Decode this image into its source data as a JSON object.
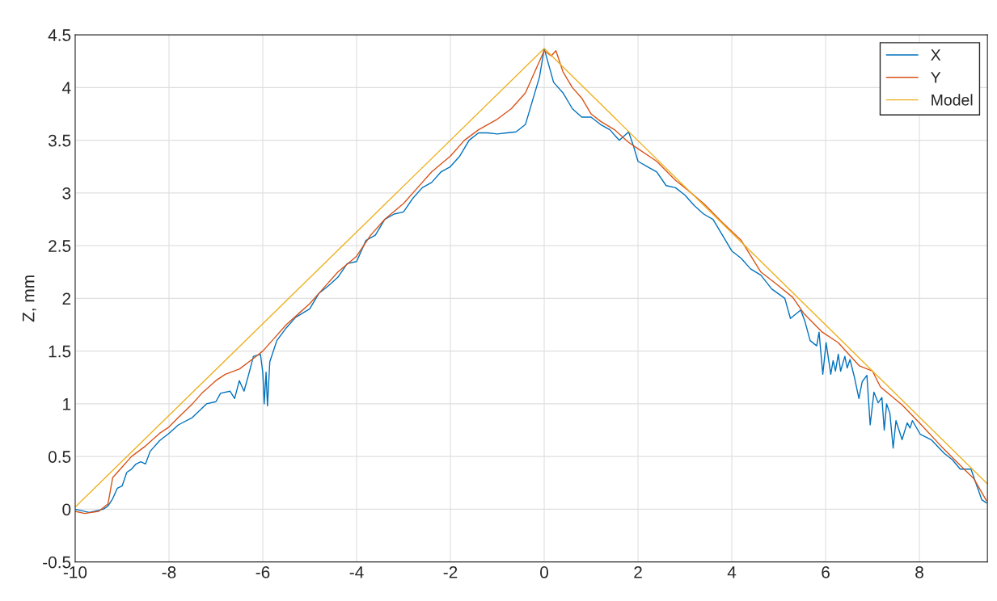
{
  "chart_data": {
    "type": "line",
    "ylabel": "Z, mm",
    "xlim": [
      -10,
      9.45
    ],
    "xticks": [
      -10,
      -8,
      -6,
      -4,
      -2,
      0,
      2,
      4,
      6,
      8
    ],
    "ylim": [
      -0.5,
      4.5
    ],
    "yticks": [
      -0.5,
      0,
      0.5,
      1,
      1.5,
      2,
      2.5,
      3,
      3.5,
      4,
      4.5
    ],
    "grid": true,
    "legend": "top right",
    "series": [
      {
        "name": "X",
        "color": "#0072bd",
        "x": [
          -10,
          -9.7,
          -9.4,
          -9.3,
          -9.2,
          -9.1,
          -9.0,
          -8.9,
          -8.8,
          -8.7,
          -8.6,
          -8.5,
          -8.4,
          -8.2,
          -8.0,
          -7.8,
          -7.5,
          -7.2,
          -7.0,
          -6.9,
          -6.7,
          -6.6,
          -6.5,
          -6.4,
          -6.3,
          -6.2,
          -6.05,
          -6.0,
          -5.97,
          -5.93,
          -5.9,
          -5.85,
          -5.7,
          -5.5,
          -5.3,
          -5.0,
          -4.8,
          -4.6,
          -4.4,
          -4.2,
          -4.0,
          -3.8,
          -3.6,
          -3.4,
          -3.2,
          -3.0,
          -2.8,
          -2.6,
          -2.4,
          -2.2,
          -2.0,
          -1.8,
          -1.6,
          -1.4,
          -1.2,
          -1.0,
          -0.8,
          -0.6,
          -0.4,
          -0.2,
          -0.1,
          0.0,
          0.2,
          0.4,
          0.6,
          0.8,
          1.0,
          1.2,
          1.4,
          1.6,
          1.8,
          1.9,
          2.0,
          2.2,
          2.4,
          2.6,
          2.8,
          3.0,
          3.2,
          3.4,
          3.6,
          3.8,
          4.0,
          4.2,
          4.4,
          4.62,
          4.85,
          5.13,
          5.25,
          5.47,
          5.56,
          5.67,
          5.81,
          5.86,
          5.94,
          6.01,
          6.11,
          6.16,
          6.21,
          6.27,
          6.32,
          6.41,
          6.46,
          6.52,
          6.61,
          6.71,
          6.78,
          6.88,
          6.95,
          7.03,
          7.12,
          7.2,
          7.25,
          7.3,
          7.37,
          7.44,
          7.5,
          7.63,
          7.74,
          7.8,
          7.85,
          8.02,
          8.25,
          8.53,
          8.7,
          8.87,
          9.1,
          9.21,
          9.33,
          9.43
        ],
        "values": [
          0.0,
          -0.03,
          0.0,
          0.03,
          0.1,
          0.2,
          0.22,
          0.35,
          0.38,
          0.43,
          0.45,
          0.43,
          0.55,
          0.65,
          0.72,
          0.8,
          0.87,
          1.0,
          1.02,
          1.1,
          1.12,
          1.05,
          1.22,
          1.12,
          1.28,
          1.45,
          1.47,
          1.3,
          1.0,
          1.3,
          0.98,
          1.4,
          1.6,
          1.72,
          1.82,
          1.9,
          2.05,
          2.12,
          2.2,
          2.33,
          2.35,
          2.55,
          2.6,
          2.75,
          2.8,
          2.82,
          2.95,
          3.05,
          3.1,
          3.2,
          3.25,
          3.35,
          3.5,
          3.57,
          3.57,
          3.56,
          3.57,
          3.58,
          3.65,
          3.95,
          4.1,
          4.37,
          4.05,
          3.95,
          3.8,
          3.72,
          3.72,
          3.65,
          3.6,
          3.5,
          3.58,
          3.45,
          3.3,
          3.25,
          3.2,
          3.07,
          3.05,
          2.98,
          2.88,
          2.8,
          2.75,
          2.6,
          2.45,
          2.38,
          2.28,
          2.22,
          2.09,
          2.0,
          1.81,
          1.89,
          1.78,
          1.6,
          1.55,
          1.68,
          1.28,
          1.58,
          1.28,
          1.41,
          1.31,
          1.47,
          1.31,
          1.45,
          1.34,
          1.42,
          1.26,
          1.05,
          1.21,
          1.27,
          0.8,
          1.11,
          1.01,
          1.06,
          0.75,
          1.0,
          0.91,
          0.58,
          0.84,
          0.66,
          0.82,
          0.77,
          0.84,
          0.71,
          0.66,
          0.53,
          0.47,
          0.38,
          0.38,
          0.24,
          0.09,
          0.06
        ]
      },
      {
        "name": "Y",
        "color": "#d95319",
        "x": [
          -10,
          -9.8,
          -9.5,
          -9.3,
          -9.2,
          -9.0,
          -8.8,
          -8.5,
          -8.2,
          -8.0,
          -7.8,
          -7.5,
          -7.3,
          -7.0,
          -6.8,
          -6.5,
          -6.2,
          -6.0,
          -5.8,
          -5.5,
          -5.2,
          -5.0,
          -4.7,
          -4.4,
          -4.0,
          -3.7,
          -3.4,
          -3.0,
          -2.7,
          -2.4,
          -2.0,
          -1.7,
          -1.4,
          -1.0,
          -0.7,
          -0.4,
          -0.2,
          0.0,
          0.15,
          0.25,
          0.4,
          0.6,
          0.8,
          1.0,
          1.2,
          1.5,
          1.8,
          2.0,
          2.4,
          2.8,
          3.0,
          3.4,
          3.8,
          4.2,
          4.62,
          4.91,
          5.3,
          5.53,
          5.93,
          6.27,
          6.72,
          7.0,
          7.17,
          7.63,
          8.02,
          8.48,
          8.93,
          9.16,
          9.43
        ],
        "values": [
          -0.02,
          -0.04,
          -0.02,
          0.05,
          0.3,
          0.4,
          0.5,
          0.6,
          0.72,
          0.78,
          0.87,
          1.0,
          1.1,
          1.22,
          1.28,
          1.33,
          1.43,
          1.5,
          1.6,
          1.75,
          1.87,
          1.95,
          2.1,
          2.25,
          2.4,
          2.6,
          2.75,
          2.9,
          3.05,
          3.2,
          3.35,
          3.5,
          3.6,
          3.7,
          3.8,
          3.95,
          4.15,
          4.35,
          4.3,
          4.35,
          4.15,
          4.0,
          3.9,
          3.75,
          3.68,
          3.6,
          3.48,
          3.42,
          3.3,
          3.12,
          3.05,
          2.9,
          2.72,
          2.55,
          2.25,
          2.15,
          2.01,
          1.86,
          1.68,
          1.58,
          1.36,
          1.31,
          1.16,
          0.99,
          0.81,
          0.59,
          0.39,
          0.29,
          0.08
        ]
      },
      {
        "name": "Model",
        "color": "#edb120",
        "x": [
          -10,
          0,
          9.45
        ],
        "values": [
          0.02,
          4.37,
          0.24
        ]
      }
    ]
  }
}
